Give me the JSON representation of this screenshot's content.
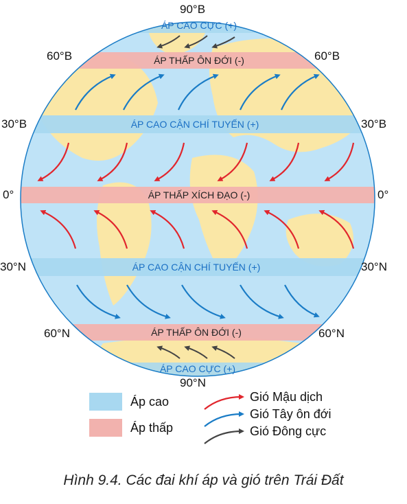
{
  "figure": {
    "latitudes": {
      "n90": "90°B",
      "n60_left": "60°B",
      "n60_right": "60°B",
      "n30_left": "30°B",
      "n30_right": "30°B",
      "eq_left": "0°",
      "eq_right": "0°",
      "s30_left": "30°N",
      "s30_right": "30°N",
      "s60_left": "60°N",
      "s60_right": "60°N",
      "s90": "90°N"
    },
    "belts": {
      "north_polar_high": "ÁP CAO CỰC (+)",
      "north_subpolar_low": "ÁP THẤP ÔN ĐỚI (-)",
      "north_subtropical_high": "ÁP CAO CẬN CHÍ TUYẾN (+)",
      "equatorial_low": "ÁP THẤP XÍCH ĐẠO (-)",
      "south_subtropical_high": "ÁP CAO CẬN CHÍ TUYẾN (+)",
      "south_subpolar_low": "ÁP THẤP ÔN ĐỚI (-)",
      "south_polar_high": "ÁP CAO CỰC (+)"
    },
    "legend": {
      "high_pressure": "Áp cao",
      "low_pressure": "Áp thấp",
      "trade_wind": "Gió Mậu dịch",
      "westerlies": "Gió Tây ôn đới",
      "polar_easterlies": "Gió Đông cực"
    },
    "colors": {
      "high_belt": "#a8d8f0",
      "low_belt": "#f2b2ae",
      "ocean": "#bfe3f7",
      "land": "#fae7a6",
      "trade_wind": "#e1262d",
      "westerlies": "#1a7cc6",
      "polar_easterlies": "#444444"
    },
    "caption": "Hình 9.4. Các đai khí áp và gió trên Trái Đất"
  }
}
